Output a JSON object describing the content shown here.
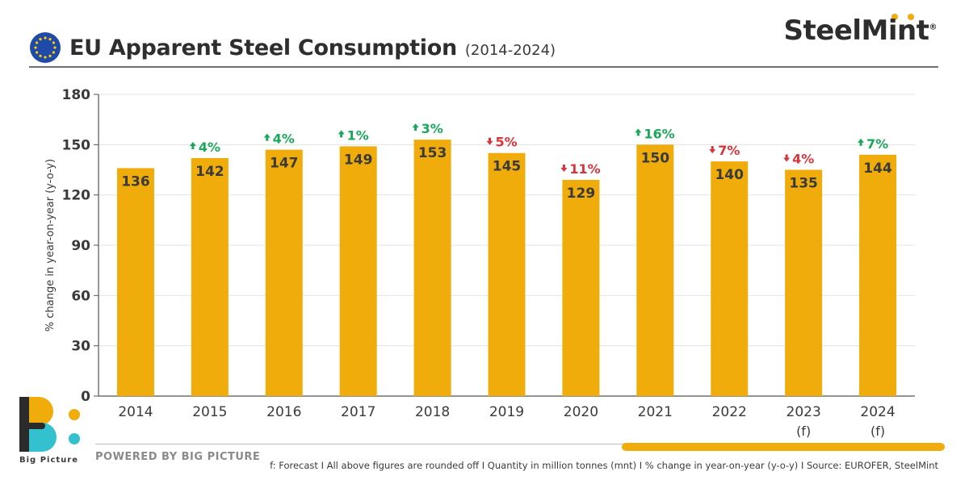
{
  "header": {
    "title": "EU Apparent Steel Consumption",
    "subtitle": "(2014-2024)",
    "flag_icon": "eu-flag-icon"
  },
  "brand": {
    "name": "SteelMint",
    "mark": "®"
  },
  "footer": {
    "logo_name": "Big Picture",
    "powered_by": "POWERED BY BIG PICTURE",
    "footnote": "f: Forecast  I  All above figures are rounded off  I  Quantity in million tonnes (mnt)  I  % change in year-on-year (y-o-y)  I  Source: EUROFER, SteelMint"
  },
  "colors": {
    "bar": "#f0ac0a",
    "up": "#1aa75b",
    "down": "#d9343a",
    "axis": "#555555",
    "grid": "#e3e3e3"
  },
  "chart_data": {
    "type": "bar",
    "title": "EU Apparent Steel Consumption",
    "subtitle": "(2014-2024)",
    "ylabel": "% change in year-on-year (y-o-y)",
    "xlabel": "",
    "ylim": [
      0,
      180
    ],
    "yticks": [
      0,
      30,
      60,
      90,
      120,
      150,
      180
    ],
    "grid": true,
    "categories": [
      "2014",
      "2015",
      "2016",
      "2017",
      "2018",
      "2019",
      "2020",
      "2021",
      "2022",
      "2023",
      "2024"
    ],
    "category_sublabels": [
      "",
      "",
      "",
      "",
      "",
      "",
      "",
      "",
      "",
      "(f)",
      "(f)"
    ],
    "values": [
      136,
      142,
      147,
      149,
      153,
      145,
      129,
      150,
      140,
      135,
      144
    ],
    "yoy_change": [
      "",
      "4%",
      "4%",
      "1%",
      "3%",
      "5%",
      "11%",
      "16%",
      "7%",
      "4%",
      "7%"
    ],
    "yoy_direction": [
      "",
      "up",
      "up",
      "up",
      "up",
      "down",
      "down",
      "up",
      "down",
      "down",
      "up"
    ]
  }
}
